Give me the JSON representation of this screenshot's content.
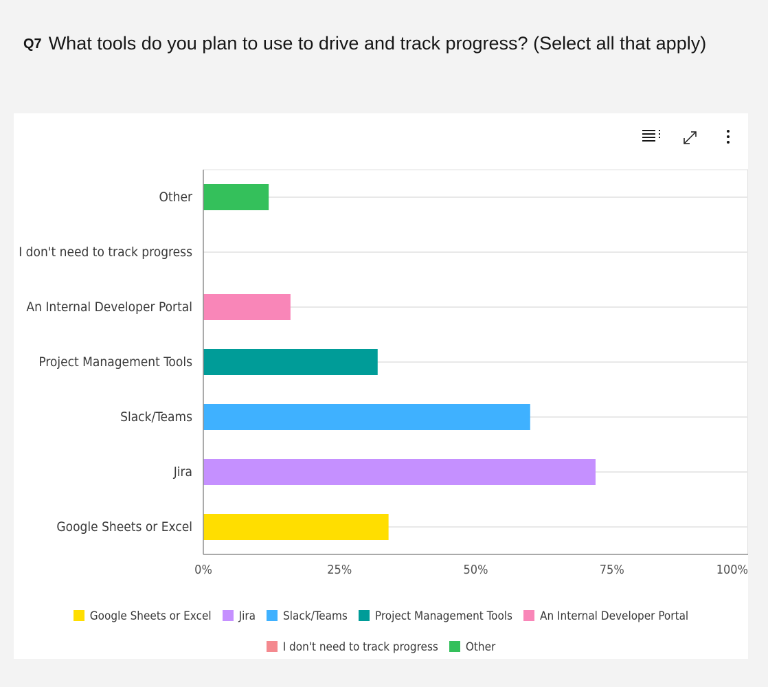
{
  "question": {
    "number": "Q7",
    "text": "What tools do you plan to use to drive and track progress? (Select all that apply)"
  },
  "toolbar": {
    "icons": [
      "list-view-icon",
      "expand-icon",
      "more-options-icon"
    ]
  },
  "chart_data": {
    "type": "bar",
    "orientation": "horizontal",
    "title": "",
    "xlabel": "",
    "ylabel": "",
    "xlim": [
      0,
      100
    ],
    "x_ticks": [
      "0%",
      "25%",
      "50%",
      "75%",
      "100%"
    ],
    "grid": true,
    "legend_position": "bottom",
    "categories": [
      "Google Sheets or Excel",
      "Jira",
      "Slack/Teams",
      "Project Management Tools",
      "An Internal Developer Portal",
      "I don't need to track progress",
      "Other"
    ],
    "values": [
      34,
      72,
      60,
      32,
      16,
      0,
      12
    ],
    "colors": [
      "#ffde00",
      "#c590ff",
      "#3fb1ff",
      "#009c98",
      "#f986b8",
      "#f4898f",
      "#34c05b"
    ]
  },
  "legend": {
    "items": [
      {
        "label": "Google Sheets or Excel",
        "color": "#ffde00"
      },
      {
        "label": "Jira",
        "color": "#c590ff"
      },
      {
        "label": "Slack/Teams",
        "color": "#3fb1ff"
      },
      {
        "label": "Project Management Tools",
        "color": "#009c98"
      },
      {
        "label": "An Internal Developer Portal",
        "color": "#f986b8"
      },
      {
        "label": "I don't need to track progress",
        "color": "#f4898f"
      },
      {
        "label": "Other",
        "color": "#34c05b"
      }
    ]
  }
}
